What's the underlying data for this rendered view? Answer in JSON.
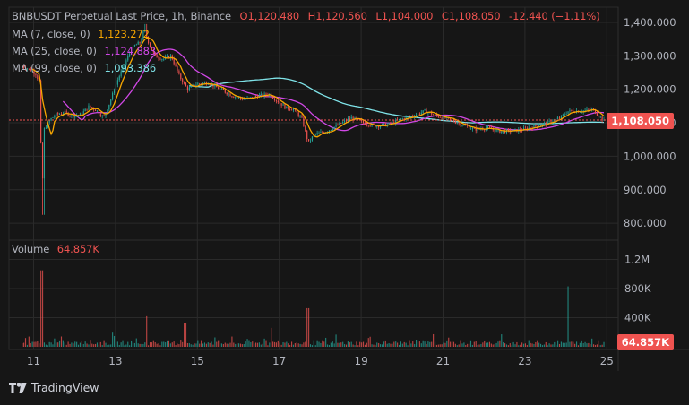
{
  "header": {
    "symbol": "BNBUSDT Perpetual Last Price, 1h, Binance",
    "open": "O1,120.480",
    "high": "H1,120.560",
    "low": "L1,104.000",
    "close": "C1,108.050",
    "change": "-12.440 (−1.11%)"
  },
  "indicators": [
    {
      "label": "MA (7, close, 0)",
      "value": "1,123.272",
      "color": "#f7a600"
    },
    {
      "label": "MA (25, close, 0)",
      "value": "1,124.883",
      "color": "#d148e6"
    },
    {
      "label": "MA (99, close, 0)",
      "value": "1,093.386",
      "color": "#7fe3e8"
    }
  ],
  "volume_legend": {
    "label": "Volume",
    "value": "64.857K"
  },
  "price_axis_ticks": [
    "1,400.000",
    "1,300.000",
    "1,200.000",
    "1,100.000",
    "1,000.000",
    "900.000",
    "800.000"
  ],
  "volume_axis_ticks": [
    "1.2M",
    "800K",
    "400K"
  ],
  "x_axis_ticks": [
    "11",
    "13",
    "15",
    "17",
    "19",
    "21",
    "23",
    "25"
  ],
  "last_price_label": "1,108.050",
  "last_volume_label": "64.857K",
  "brand": "TradingView",
  "colors": {
    "up": "#26a69a",
    "down": "#ef5350",
    "background": "#161616",
    "grid": "#2a2a2a",
    "text": "#b2b5be"
  },
  "chart_data": {
    "type": "candlestick",
    "title": "BNBUSDT Perpetual Last Price, 1h, Binance",
    "interval": "1h",
    "price_range": [
      780,
      1420
    ],
    "volume_range": [
      0,
      1300000
    ],
    "last_price": 1108.05,
    "grid": true,
    "series": [
      {
        "name": "Price",
        "path_points": [
          [
            10.7,
            1270
          ],
          [
            10.85,
            1265
          ],
          [
            11.0,
            1255
          ],
          [
            11.1,
            1245
          ],
          [
            11.15,
            1230
          ],
          [
            11.2,
            1220
          ],
          [
            11.24,
            850
          ],
          [
            11.3,
            1080
          ],
          [
            11.45,
            1110
          ],
          [
            11.6,
            1125
          ],
          [
            11.8,
            1130
          ],
          [
            12.0,
            1120
          ],
          [
            12.2,
            1125
          ],
          [
            12.4,
            1150
          ],
          [
            12.6,
            1135
          ],
          [
            12.75,
            1115
          ],
          [
            12.9,
            1160
          ],
          [
            13.1,
            1230
          ],
          [
            13.25,
            1270
          ],
          [
            13.35,
            1300
          ],
          [
            13.5,
            1330
          ],
          [
            13.65,
            1340
          ],
          [
            13.75,
            1380
          ],
          [
            13.85,
            1340
          ],
          [
            14.0,
            1300
          ],
          [
            14.2,
            1290
          ],
          [
            14.4,
            1300
          ],
          [
            14.6,
            1240
          ],
          [
            14.8,
            1200
          ],
          [
            15.0,
            1215
          ],
          [
            15.3,
            1220
          ],
          [
            15.6,
            1200
          ],
          [
            15.9,
            1180
          ],
          [
            16.2,
            1170
          ],
          [
            16.5,
            1180
          ],
          [
            16.8,
            1185
          ],
          [
            17.0,
            1165
          ],
          [
            17.2,
            1145
          ],
          [
            17.4,
            1140
          ],
          [
            17.6,
            1110
          ],
          [
            17.75,
            1040
          ],
          [
            17.9,
            1065
          ],
          [
            18.2,
            1075
          ],
          [
            18.5,
            1095
          ],
          [
            18.8,
            1115
          ],
          [
            19.1,
            1100
          ],
          [
            19.4,
            1090
          ],
          [
            19.7,
            1095
          ],
          [
            20.0,
            1110
          ],
          [
            20.3,
            1120
          ],
          [
            20.6,
            1135
          ],
          [
            20.9,
            1120
          ],
          [
            21.2,
            1110
          ],
          [
            21.5,
            1095
          ],
          [
            21.8,
            1080
          ],
          [
            22.1,
            1085
          ],
          [
            22.4,
            1075
          ],
          [
            22.7,
            1075
          ],
          [
            23.0,
            1080
          ],
          [
            23.3,
            1090
          ],
          [
            23.6,
            1100
          ],
          [
            23.9,
            1115
          ],
          [
            24.1,
            1135
          ],
          [
            24.4,
            1135
          ],
          [
            24.7,
            1140
          ],
          [
            24.95,
            1108
          ]
        ]
      },
      {
        "name": "MA (7, close, 0)",
        "value": 1123.272
      },
      {
        "name": "MA (25, close, 0)",
        "value": 1124.883
      },
      {
        "name": "MA (99, close, 0)",
        "value": 1093.386
      }
    ],
    "volume": {
      "name": "Volume",
      "last": 64857,
      "spikes": [
        [
          11.2,
          1050000
        ],
        [
          13.75,
          420000
        ],
        [
          14.7,
          320000
        ],
        [
          16.8,
          260000
        ],
        [
          17.7,
          530000
        ],
        [
          24.05,
          830000
        ]
      ]
    }
  }
}
